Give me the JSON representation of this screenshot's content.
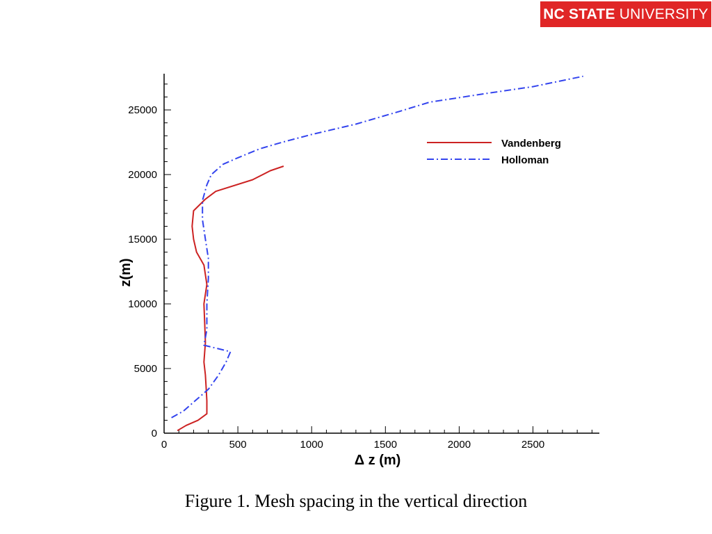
{
  "logo": {
    "strong": "NC STATE",
    "light": "UNIVERSITY"
  },
  "caption": "Figure 1.  Mesh spacing in the vertical direction",
  "chart_data": {
    "type": "line",
    "title": "",
    "xlabel": "Δ z (m)",
    "ylabel": "z(m)",
    "xlim": [
      0,
      2950
    ],
    "ylim": [
      0,
      27800
    ],
    "xticks": [
      0,
      500,
      1000,
      1500,
      2000,
      2500
    ],
    "yticks": [
      0,
      5000,
      10000,
      15000,
      20000,
      25000
    ],
    "grid": false,
    "legend_position": "top-right",
    "series": [
      {
        "name": "Vandenberg",
        "color": "#cc2222",
        "style": "solid",
        "points": [
          [
            90,
            200
          ],
          [
            150,
            600
          ],
          [
            230,
            1000
          ],
          [
            290,
            1500
          ],
          [
            290,
            2500
          ],
          [
            285,
            3500
          ],
          [
            280,
            4500
          ],
          [
            270,
            5500
          ],
          [
            280,
            7000
          ],
          [
            275,
            8500
          ],
          [
            270,
            10000
          ],
          [
            290,
            11500
          ],
          [
            270,
            13000
          ],
          [
            220,
            14000
          ],
          [
            200,
            15000
          ],
          [
            190,
            16000
          ],
          [
            200,
            17200
          ],
          [
            280,
            18100
          ],
          [
            350,
            18700
          ],
          [
            600,
            19600
          ],
          [
            720,
            20300
          ],
          [
            810,
            20650
          ]
        ]
      },
      {
        "name": "Holloman",
        "color": "#3344ee",
        "style": "dashdot",
        "points": [
          [
            50,
            1200
          ],
          [
            130,
            1700
          ],
          [
            200,
            2400
          ],
          [
            300,
            3400
          ],
          [
            370,
            4500
          ],
          [
            420,
            5500
          ],
          [
            450,
            6300
          ],
          [
            270,
            6800
          ],
          [
            290,
            8000
          ],
          [
            290,
            10000
          ],
          [
            300,
            12000
          ],
          [
            300,
            13500
          ],
          [
            280,
            15000
          ],
          [
            260,
            16500
          ],
          [
            260,
            18000
          ],
          [
            290,
            19200
          ],
          [
            320,
            20000
          ],
          [
            400,
            20800
          ],
          [
            500,
            21300
          ],
          [
            650,
            22000
          ],
          [
            800,
            22500
          ],
          [
            1000,
            23100
          ],
          [
            1300,
            23900
          ],
          [
            1600,
            24900
          ],
          [
            1800,
            25600
          ],
          [
            2200,
            26300
          ],
          [
            2500,
            26800
          ],
          [
            2840,
            27600
          ]
        ]
      }
    ]
  }
}
